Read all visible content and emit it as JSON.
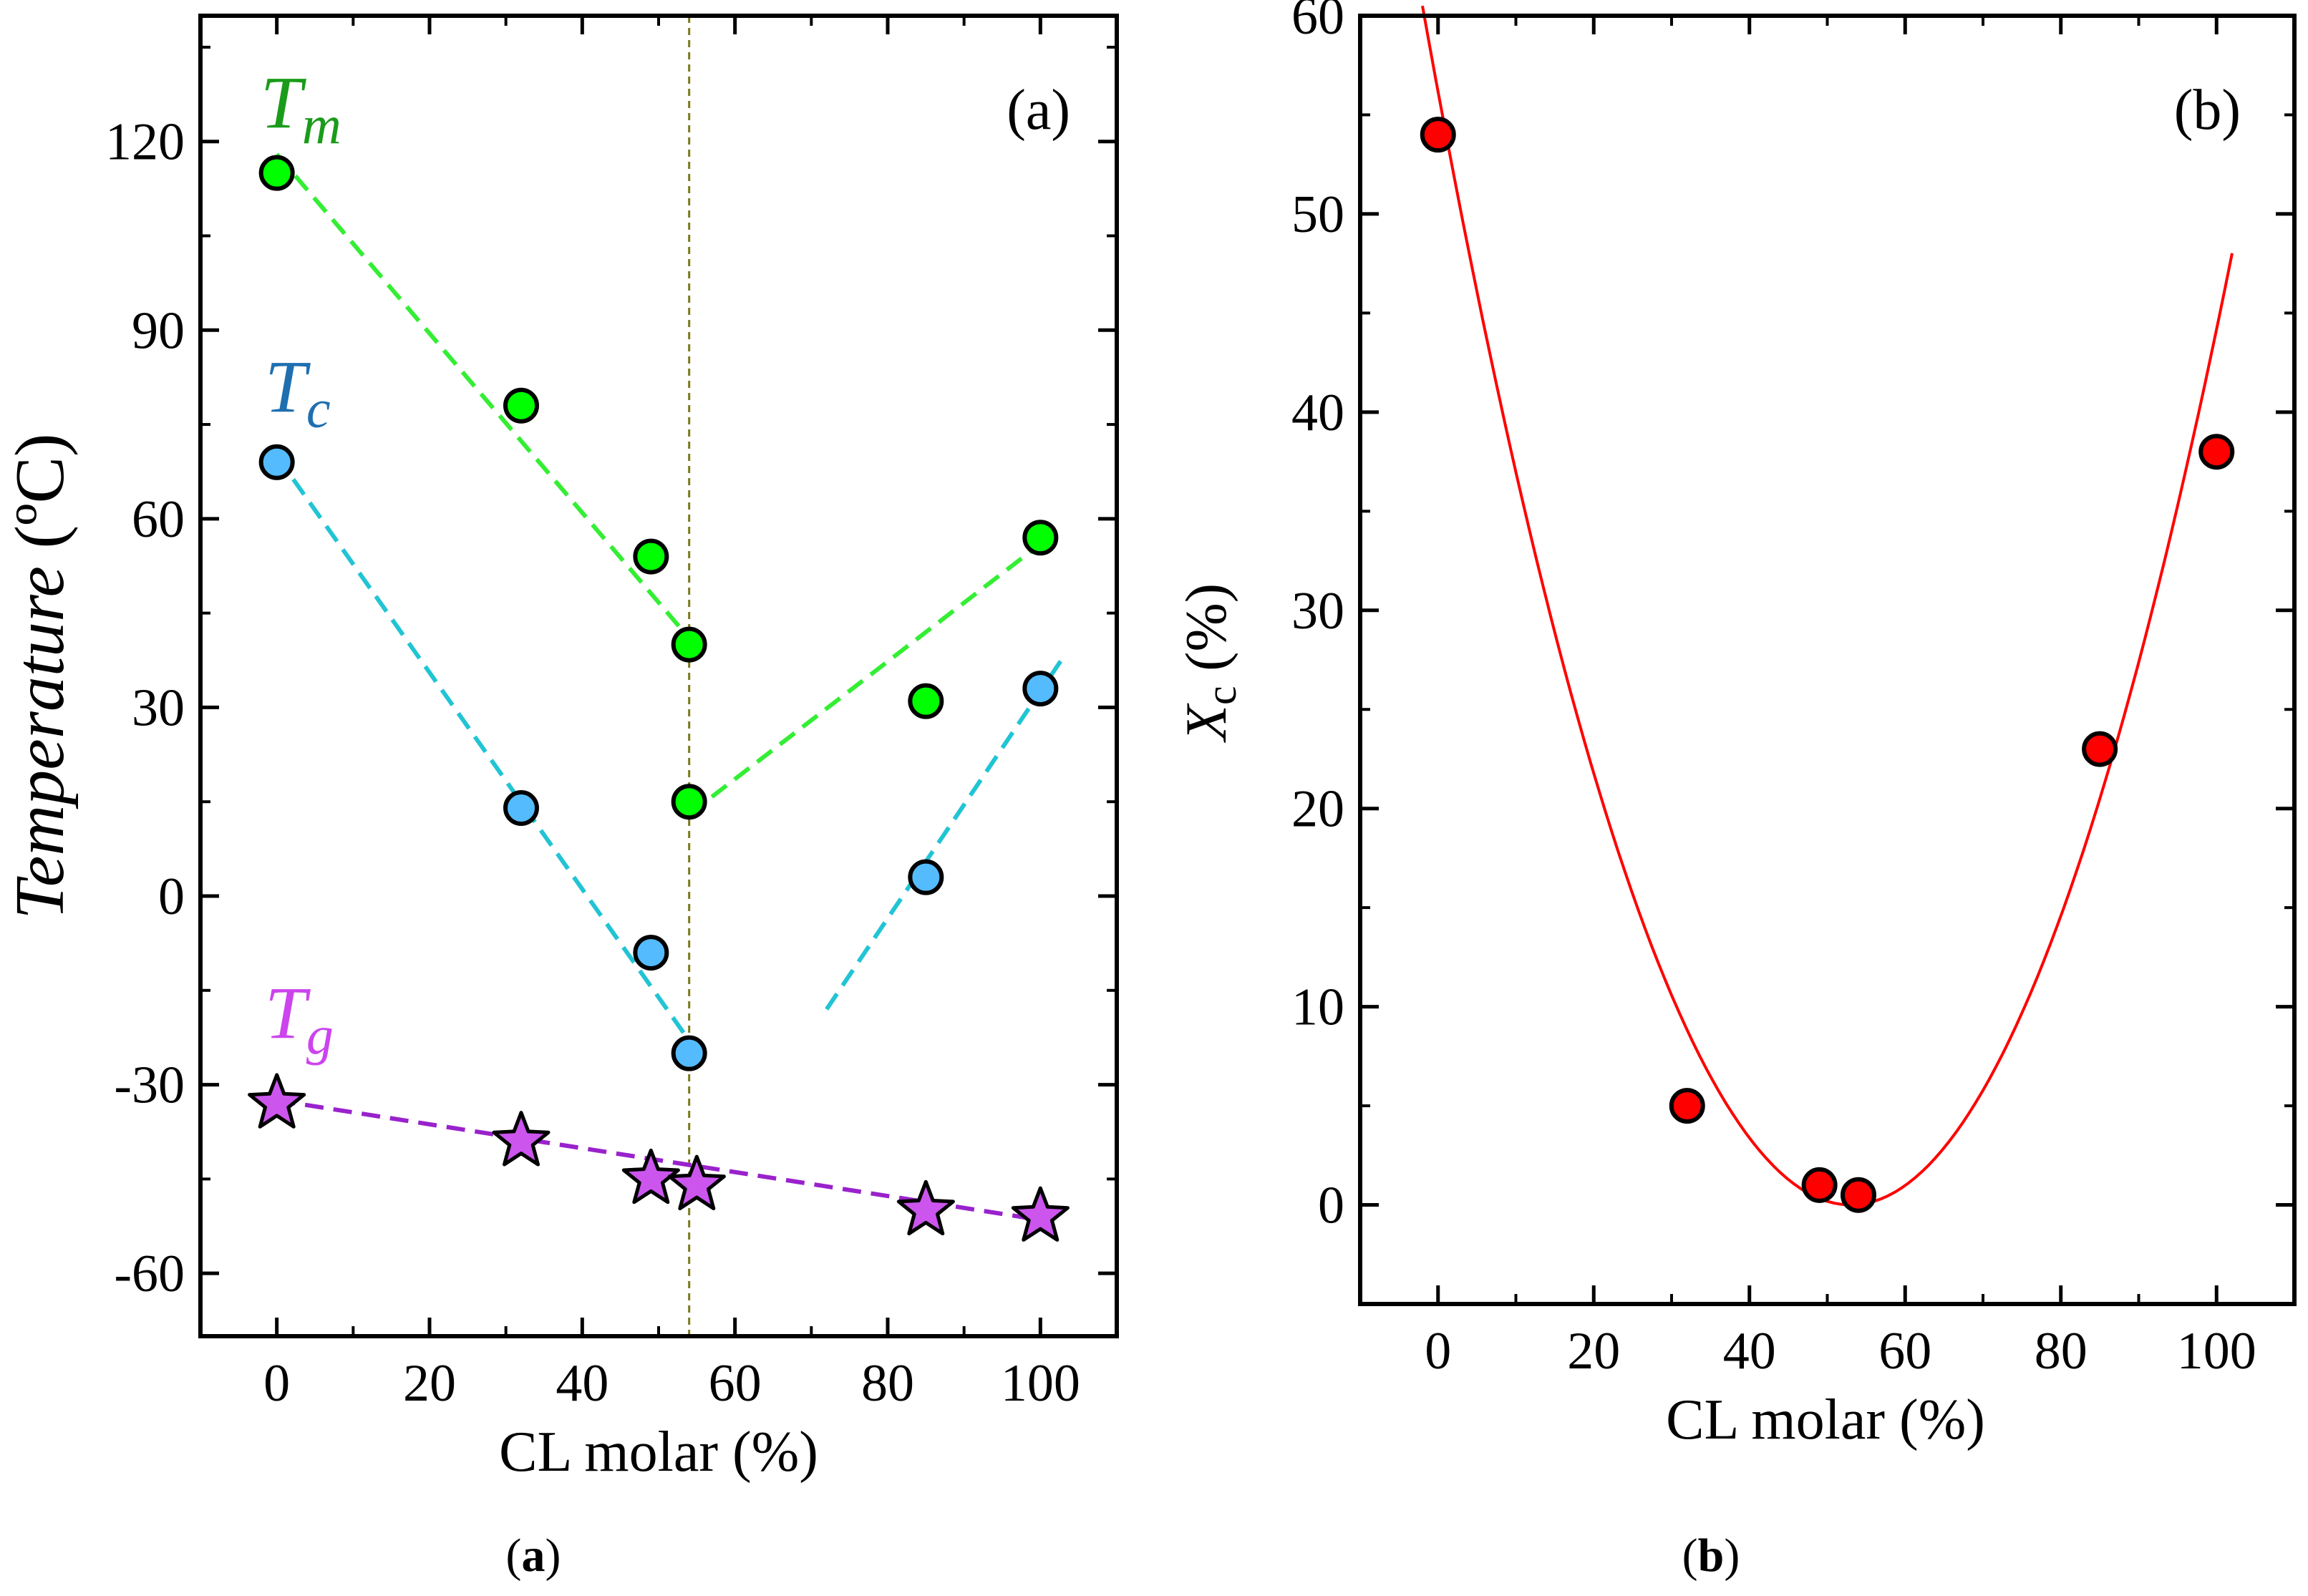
{
  "chart_data": [
    {
      "type": "scatter",
      "panel_tag": "(a)",
      "caption_open": "(",
      "caption_bold": "a",
      "caption_close": ")",
      "xlabel": "CL molar (%)",
      "ylabel": "Temperature (ºC)",
      "ylabel_main": "Temperature",
      "ylabel_unit": " (ºC)",
      "xlim": [
        -10,
        110
      ],
      "ylim": [
        -70,
        140
      ],
      "xticks": [
        0,
        20,
        40,
        60,
        80,
        100
      ],
      "yticks": [
        120,
        90,
        60,
        30,
        0,
        -30,
        -60
      ],
      "ytick_labels": [
        "120",
        "90",
        "60",
        "30",
        "0",
        "-30",
        "-60"
      ],
      "vline_x": 54,
      "series": [
        {
          "name": "Tm",
          "label_main": "T",
          "label_sub": "m",
          "color": "#00ff00",
          "label_color": "#1a9c1a",
          "line_color": "#33ee33",
          "marker": "circle",
          "x": [
            0,
            32,
            49,
            54,
            54,
            85,
            100
          ],
          "y": [
            115,
            78,
            54,
            40,
            15,
            31,
            57
          ],
          "fit_lines": [
            {
              "x": [
                0,
                54
              ],
              "y": [
                118,
                41
              ]
            },
            {
              "x": [
                54,
                100
              ],
              "y": [
                13,
                56
              ]
            }
          ]
        },
        {
          "name": "Tc",
          "label_main": "T",
          "label_sub": "c",
          "color": "#55bbff",
          "label_color": "#1f6fb0",
          "line_color": "#22c4d4",
          "marker": "circle",
          "x": [
            0,
            32,
            49,
            54,
            85,
            100
          ],
          "y": [
            69,
            14,
            -9,
            -25,
            3,
            33
          ],
          "fit_lines": [
            {
              "x": [
                0,
                54
              ],
              "y": [
                70,
                -23
              ]
            },
            {
              "x": [
                72,
                103
              ],
              "y": [
                -18,
                38
              ]
            }
          ]
        },
        {
          "name": "Tg",
          "label_main": "T",
          "label_sub": "g",
          "color": "#cc55ee",
          "label_color": "#cc44ee",
          "line_color": "#9922cc",
          "marker": "star",
          "x": [
            0,
            32,
            49,
            55,
            85,
            100
          ],
          "y": [
            -33,
            -39,
            -45,
            -46,
            -50,
            -51
          ],
          "fit_lines": [
            {
              "x": [
                0,
                100
              ],
              "y": [
                -32.5,
                -51.5
              ]
            }
          ]
        }
      ]
    },
    {
      "type": "scatter",
      "panel_tag": "(b)",
      "caption_open": "(",
      "caption_bold": "b",
      "caption_close": ")",
      "xlabel": "CL molar (%)",
      "ylabel": "Xc (%)",
      "ylabel_main": "X",
      "ylabel_sub": "c",
      "ylabel_unit": " (%)",
      "xlim": [
        -10,
        110
      ],
      "ylim": [
        -5,
        60
      ],
      "xticks": [
        0,
        20,
        40,
        60,
        80,
        100
      ],
      "yticks": [
        0,
        10,
        20,
        30,
        40,
        50,
        60
      ],
      "series": [
        {
          "name": "Xc",
          "color": "#ff0000",
          "marker": "circle",
          "x": [
            0,
            32,
            49,
            54,
            85,
            100
          ],
          "y": [
            54,
            5,
            1,
            0.5,
            23,
            38
          ]
        }
      ],
      "fit_curve": {
        "type": "quadratic",
        "color": "#ff0000",
        "x_range": [
          -2,
          102
        ],
        "vertex_x": 53,
        "vertex_y": 0,
        "a": 0.02
      }
    }
  ]
}
